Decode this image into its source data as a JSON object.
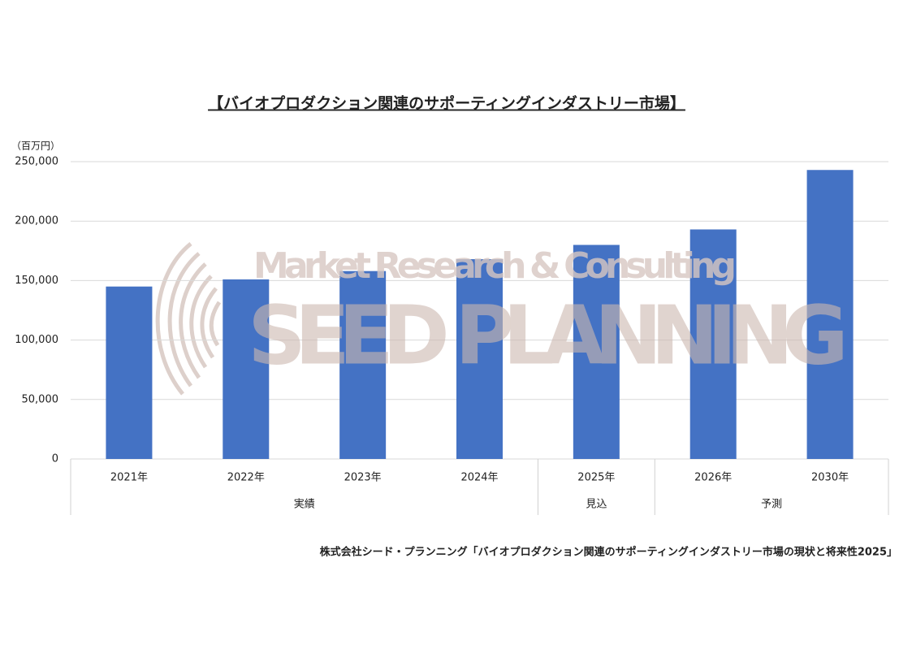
{
  "chart_data": {
    "type": "bar",
    "title": "【バイオプロダクション関連のサポーティングインダストリー市場】",
    "y_unit_label": "（百万円）",
    "categories": [
      "2021年",
      "2022年",
      "2023年",
      "2024年",
      "2025年",
      "2026年",
      "2030年"
    ],
    "category_groups": [
      "実績",
      "実績",
      "実績",
      "実績",
      "見込",
      "予測",
      "予測"
    ],
    "values": [
      145000,
      151000,
      158000,
      168000,
      180000,
      193000,
      243000
    ],
    "color": "#4472c4",
    "ylim": [
      0,
      250000
    ],
    "yticks": [
      0,
      {
        "value": 50000,
        "label": "50,000"
      },
      {
        "value": 100000,
        "label": "100,000"
      },
      {
        "value": 150000,
        "label": "150,000"
      },
      {
        "value": 200000,
        "label": "200,000"
      },
      {
        "value": 250000,
        "label": "250,000"
      }
    ],
    "grid": true,
    "source": "株式会社シード・プランニング「バイオプロダクション関連のサポーティングインダストリー市場の現状と将来性2025」"
  },
  "watermark": {
    "line1": "Market Research & Consulting",
    "line2": "SEED PLANNING"
  }
}
